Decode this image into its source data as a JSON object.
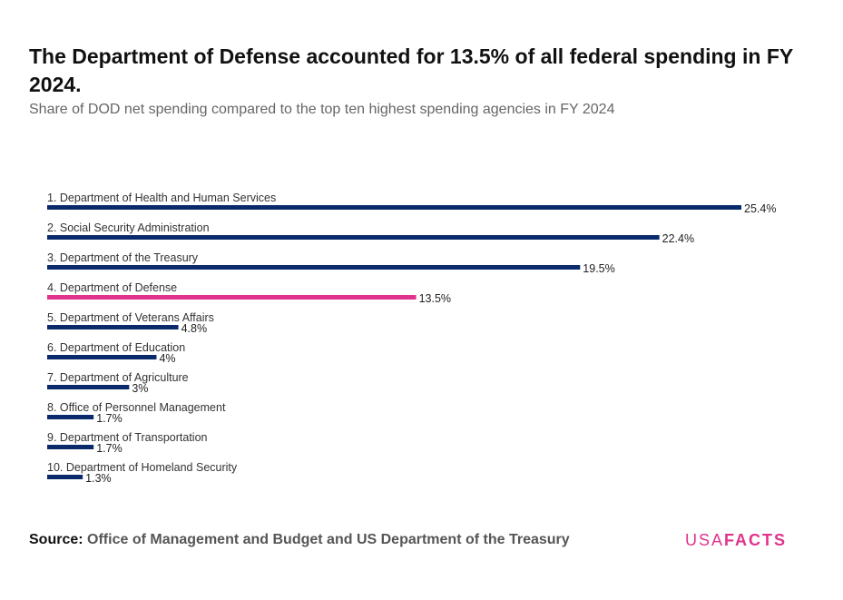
{
  "header": {
    "title": "The Department of Defense accounted for 13.5% of all federal spending in FY 2024.",
    "subtitle": "Share of DOD net spending compared to the top ten highest spending agencies in FY 2024"
  },
  "chart_data": {
    "type": "bar",
    "orientation": "horizontal",
    "title": "The Department of Defense accounted for 13.5% of all federal spending in FY 2024.",
    "subtitle": "Share of DOD net spending compared to the top ten highest spending agencies in FY 2024",
    "categories": [
      "1. Department of Health and Human Services",
      "2. Social Security Administration",
      "3. Department of the Treasury",
      "4. Department of Defense",
      "5. Department of Veterans Affairs",
      "6. Department of Education",
      "7. Department of Agriculture",
      "8. Office of Personnel Management",
      "9. Department of Transportation",
      "10. Department of Homeland Security"
    ],
    "values": [
      25.4,
      22.4,
      19.5,
      13.5,
      4.8,
      4,
      3,
      1.7,
      1.7,
      1.3
    ],
    "value_labels": [
      "25.4%",
      "22.4%",
      "19.5%",
      "13.5%",
      "4.8%",
      "4%",
      "3%",
      "1.7%",
      "1.7%",
      "1.3%"
    ],
    "highlight_index": 3,
    "colors": {
      "default": "#0b2a6b",
      "highlight": "#e0338c"
    },
    "xlim": [
      0,
      25.4
    ],
    "grid": false,
    "legend": "none"
  },
  "footer": {
    "source_lead": "Source:",
    "source_text": "Office of Management and Budget and US Department of the Treasury",
    "brand_light": "USA",
    "brand_bold": "FACTS",
    "brand_color": "#e0338c"
  }
}
